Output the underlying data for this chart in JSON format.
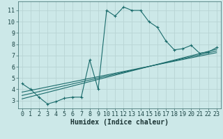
{
  "title": "",
  "xlabel": "Humidex (Indice chaleur)",
  "ylabel": "",
  "bg_color": "#cce8e8",
  "grid_color": "#b8d4d4",
  "line_color": "#1a6b6b",
  "xlim": [
    -0.5,
    23.5
  ],
  "ylim": [
    2.3,
    11.8
  ],
  "yticks": [
    3,
    4,
    5,
    6,
    7,
    8,
    9,
    10,
    11
  ],
  "xticks": [
    0,
    1,
    2,
    3,
    4,
    5,
    6,
    7,
    8,
    9,
    10,
    11,
    12,
    13,
    14,
    15,
    16,
    17,
    18,
    19,
    20,
    21,
    22,
    23
  ],
  "main_x": [
    0,
    1,
    2,
    3,
    4,
    5,
    6,
    7,
    8,
    9,
    10,
    11,
    12,
    13,
    14,
    15,
    16,
    17,
    18,
    19,
    20,
    21,
    22,
    23
  ],
  "main_y": [
    4.5,
    4.0,
    3.3,
    2.7,
    2.9,
    3.2,
    3.3,
    3.3,
    6.6,
    4.0,
    11.0,
    10.5,
    11.3,
    11.0,
    11.0,
    10.0,
    9.5,
    8.3,
    7.5,
    7.6,
    7.9,
    7.2,
    7.3,
    7.7
  ],
  "trend1_x": [
    0,
    23
  ],
  "trend1_y": [
    3.15,
    7.55
  ],
  "trend2_x": [
    0,
    23
  ],
  "trend2_y": [
    3.45,
    7.4
  ],
  "trend3_x": [
    0,
    23
  ],
  "trend3_y": [
    3.75,
    7.25
  ],
  "xlabel_fontsize": 7.0,
  "tick_fontsize": 6.0
}
